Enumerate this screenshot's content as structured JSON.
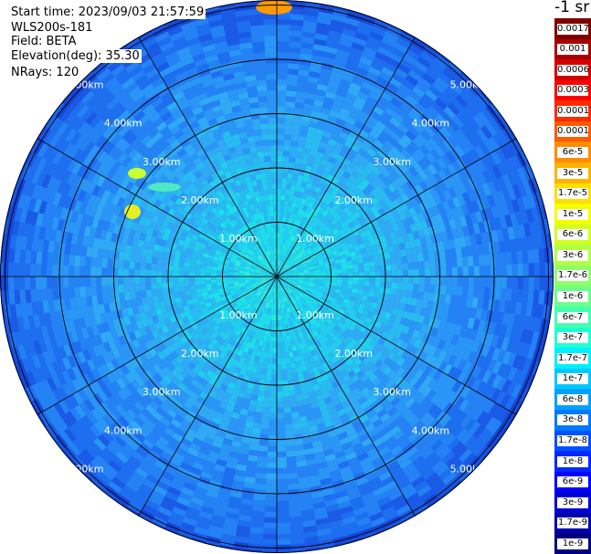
{
  "header": {
    "start_time": "Start time: 2023/09/03 21:57:59",
    "instrument": "WLS200s-181",
    "field": "Field: BETA",
    "elevation": "Elevation(deg): 35.30",
    "nrays": "NRays: 120"
  },
  "unit_label": "-1 sr",
  "range_rings": {
    "labels": [
      "1.00km",
      "2.00km",
      "3.00km",
      "4.00km",
      "5.00km"
    ],
    "values_km": [
      1,
      2,
      3,
      4,
      5
    ]
  },
  "spokes_deg": [
    0,
    30,
    60,
    90,
    120,
    150,
    180,
    210,
    240,
    270,
    300,
    330
  ],
  "colorbar": {
    "entries": [
      {
        "label": "0.0017",
        "color": "#7f0000"
      },
      {
        "label": "0.001",
        "color": "#a80000"
      },
      {
        "label": "0.0006",
        "color": "#d40000"
      },
      {
        "label": "0.0003",
        "color": "#ff0000"
      },
      {
        "label": "0.00017",
        "color": "#ff2a00"
      },
      {
        "label": "0.0001",
        "color": "#ff5a00"
      },
      {
        "label": "6e-5",
        "color": "#ff8c00"
      },
      {
        "label": "3e-5",
        "color": "#ffb300"
      },
      {
        "label": "1.7e-5",
        "color": "#ffde00"
      },
      {
        "label": "1e-5",
        "color": "#f4ff00"
      },
      {
        "label": "6e-6",
        "color": "#d2ff1f"
      },
      {
        "label": "3e-6",
        "color": "#b0ff45"
      },
      {
        "label": "1.7e-6",
        "color": "#8cff6b"
      },
      {
        "label": "1e-6",
        "color": "#6bff8c"
      },
      {
        "label": "6e-7",
        "color": "#45ffb0"
      },
      {
        "label": "3e-7",
        "color": "#1fffd2"
      },
      {
        "label": "1.7e-7",
        "color": "#00f0ff"
      },
      {
        "label": "1e-7",
        "color": "#00c8ff"
      },
      {
        "label": "6e-8",
        "color": "#00a0ff"
      },
      {
        "label": "3e-8",
        "color": "#0078ff"
      },
      {
        "label": "1.7e-8",
        "color": "#0050ff"
      },
      {
        "label": "1e-8",
        "color": "#0028ff"
      },
      {
        "label": "6e-9",
        "color": "#0000ff"
      },
      {
        "label": "3e-9",
        "color": "#0000d4"
      },
      {
        "label": "1.7e-9",
        "color": "#0000a8"
      },
      {
        "label": "1e-9",
        "color": "#00007f"
      }
    ]
  },
  "colors": {
    "background_field": "#2a8cf0",
    "inner_field": "#20d8f0",
    "grid": "#000000",
    "hotspot": "#c8ff30"
  }
}
